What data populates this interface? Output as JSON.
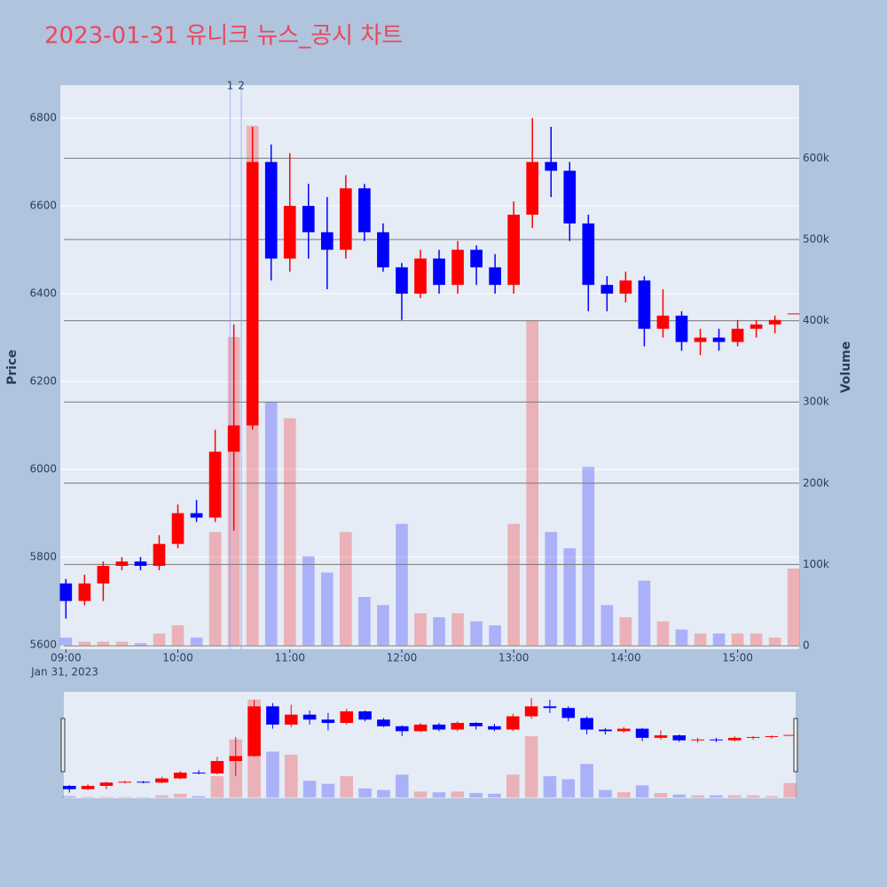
{
  "chart_data": {
    "type": "candlestick",
    "title": "2023-01-31 유니크 뉴스_공시 차트",
    "title_color": "#e8495a",
    "y_label": "Price",
    "y2_label": "Volume",
    "date_label": "Jan 31, 2023",
    "x": [
      "2023-01-31 09:00",
      "2023-01-31 09:10",
      "2023-01-31 09:20",
      "2023-01-31 09:30",
      "2023-01-31 09:40",
      "2023-01-31 09:50",
      "2023-01-31 10:00",
      "2023-01-31 10:10",
      "2023-01-31 10:20",
      "2023-01-31 10:30",
      "2023-01-31 10:40",
      "2023-01-31 10:50",
      "2023-01-31 11:00",
      "2023-01-31 11:10",
      "2023-01-31 11:20",
      "2023-01-31 11:30",
      "2023-01-31 11:40",
      "2023-01-31 11:50",
      "2023-01-31 12:00",
      "2023-01-31 12:10",
      "2023-01-31 12:20",
      "2023-01-31 12:30",
      "2023-01-31 12:40",
      "2023-01-31 12:50",
      "2023-01-31 13:00",
      "2023-01-31 13:10",
      "2023-01-31 13:20",
      "2023-01-31 13:30",
      "2023-01-31 13:40",
      "2023-01-31 13:50",
      "2023-01-31 14:00",
      "2023-01-31 14:10",
      "2023-01-31 14:20",
      "2023-01-31 14:30",
      "2023-01-31 14:40",
      "2023-01-31 14:50",
      "2023-01-31 15:00",
      "2023-01-31 15:10",
      "2023-01-31 15:20",
      "2023-01-31 15:30"
    ],
    "open": [
      5740,
      5700,
      5740,
      5780,
      5790,
      5780,
      5830,
      5900,
      5890,
      6040,
      6100,
      6700,
      6480,
      6600,
      6540,
      6500,
      6640,
      6540,
      6460,
      6400,
      6480,
      6420,
      6500,
      6460,
      6420,
      6580,
      6700,
      6680,
      6560,
      6420,
      6400,
      6430,
      6320,
      6350,
      6290,
      6300,
      6290,
      6320,
      6330,
      6355
    ],
    "high": [
      5750,
      5760,
      5790,
      5800,
      5800,
      5850,
      5920,
      5930,
      6090,
      6330,
      6780,
      6740,
      6720,
      6650,
      6620,
      6670,
      6650,
      6560,
      6470,
      6500,
      6500,
      6520,
      6510,
      6490,
      6610,
      6800,
      6780,
      6700,
      6580,
      6440,
      6450,
      6440,
      6410,
      6360,
      6320,
      6320,
      6340,
      6340,
      6350,
      6355
    ],
    "low": [
      5660,
      5690,
      5700,
      5770,
      5770,
      5770,
      5820,
      5880,
      5880,
      5860,
      6090,
      6430,
      6450,
      6480,
      6410,
      6480,
      6520,
      6450,
      6340,
      6390,
      6400,
      6400,
      6420,
      6400,
      6400,
      6550,
      6620,
      6520,
      6360,
      6360,
      6380,
      6280,
      6300,
      6270,
      6260,
      6270,
      6280,
      6300,
      6310,
      6355
    ],
    "close": [
      5700,
      5740,
      5780,
      5790,
      5780,
      5830,
      5900,
      5890,
      6040,
      6100,
      6700,
      6480,
      6600,
      6540,
      6500,
      6640,
      6540,
      6460,
      6400,
      6480,
      6420,
      6500,
      6460,
      6420,
      6580,
      6700,
      6680,
      6560,
      6420,
      6400,
      6430,
      6320,
      6350,
      6290,
      6300,
      6290,
      6320,
      6330,
      6340,
      6355
    ],
    "volume": [
      10000,
      5000,
      5000,
      5000,
      3000,
      15000,
      25000,
      10000,
      140000,
      380000,
      640000,
      300000,
      280000,
      110000,
      90000,
      140000,
      60000,
      50000,
      150000,
      40000,
      35000,
      40000,
      30000,
      25000,
      150000,
      400000,
      140000,
      120000,
      220000,
      50000,
      35000,
      80000,
      30000,
      20000,
      15000,
      15000,
      15000,
      15000,
      10000,
      95000
    ],
    "increasing_color": "#ff0000",
    "decreasing_color": "#0000ff",
    "xlim": [
      "2023-01-31 08:57",
      "2023-01-31 15:33"
    ],
    "xticks": [
      {
        "value": "2023-01-31 09:00",
        "label": "09:00"
      },
      {
        "value": "2023-01-31 10:00",
        "label": "10:00"
      },
      {
        "value": "2023-01-31 11:00",
        "label": "11:00"
      },
      {
        "value": "2023-01-31 12:00",
        "label": "12:00"
      },
      {
        "value": "2023-01-31 13:00",
        "label": "13:00"
      },
      {
        "value": "2023-01-31 14:00",
        "label": "14:00"
      },
      {
        "value": "2023-01-31 15:00",
        "label": "15:00"
      }
    ],
    "ylim": [
      5590,
      6875
    ],
    "yticks": [
      5600,
      5800,
      6000,
      6200,
      6400,
      6600,
      6800
    ],
    "y2lim": [
      -4400,
      690000
    ],
    "y2ticks": [
      0,
      {
        "value": 100000,
        "label": "100k"
      },
      {
        "value": 200000,
        "label": "200k"
      },
      {
        "value": 300000,
        "label": "300k"
      },
      {
        "value": 400000,
        "label": "400k"
      },
      {
        "value": 500000,
        "label": "500k"
      },
      {
        "value": 600000,
        "label": "600k"
      }
    ],
    "annotations": [
      {
        "x": "2023-01-31 10:28",
        "text": "1"
      },
      {
        "x": "2023-01-31 10:34",
        "text": "2"
      }
    ],
    "grid": true,
    "range_slider": true
  }
}
